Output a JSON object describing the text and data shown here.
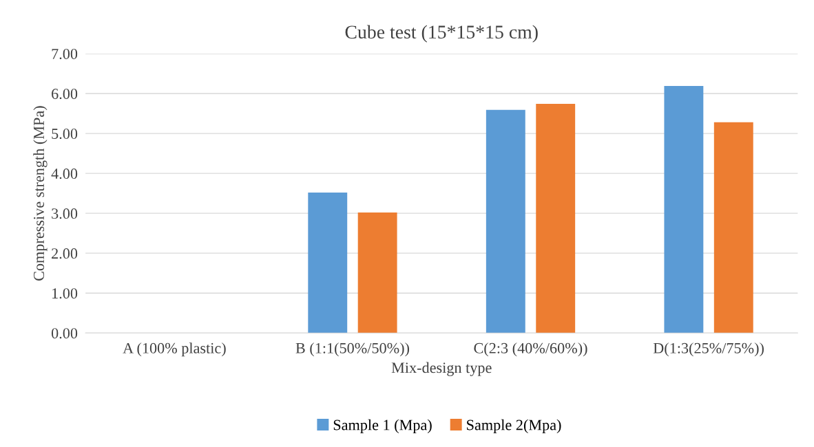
{
  "chart_data": {
    "type": "bar",
    "title": "Cube test (15*15*15 cm)",
    "xlabel": "Mix-design type",
    "ylabel": "Compressive strength (MPa)",
    "categories": [
      "A (100% plastic)",
      "B (1:1(50%/50%))",
      "C(2:3 (40%/60%))",
      "D(1:3(25%/75%))"
    ],
    "series": [
      {
        "name": "Sample 1 (Mpa)",
        "color": "#5b9bd5",
        "values": [
          0,
          3.52,
          5.59,
          6.19
        ]
      },
      {
        "name": "Sample 2(Mpa)",
        "color": "#ed7d31",
        "values": [
          0,
          3.02,
          5.74,
          5.28
        ]
      }
    ],
    "ylim": [
      0,
      7
    ],
    "yticks": [
      {
        "value": 0,
        "label": "0.00"
      },
      {
        "value": 1,
        "label": "1.00"
      },
      {
        "value": 2,
        "label": "2.00"
      },
      {
        "value": 3,
        "label": "3.00"
      },
      {
        "value": 4,
        "label": "4.00"
      },
      {
        "value": 5,
        "label": "5.00"
      },
      {
        "value": 6,
        "label": "6.00"
      },
      {
        "value": 7,
        "label": "7.00"
      }
    ],
    "grid": "y",
    "legend": "bottom"
  }
}
